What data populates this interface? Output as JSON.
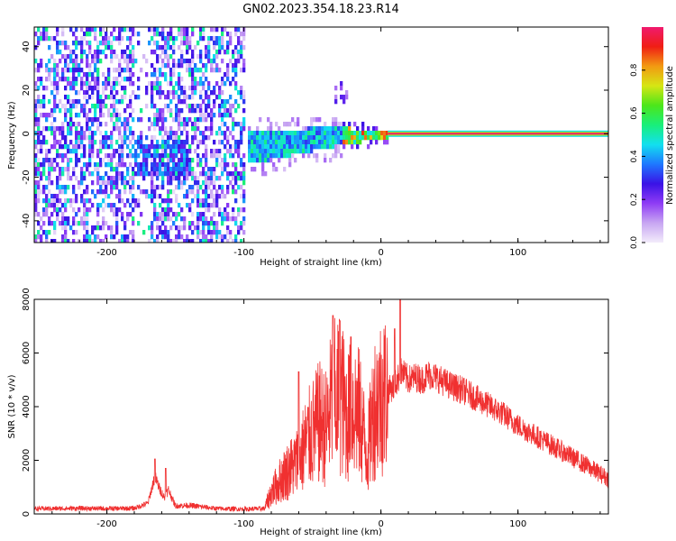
{
  "figure": {
    "title": "GN02.2023.354.18.23.R14"
  },
  "chart_data": [
    {
      "type": "heatmap",
      "name": "spectrogram",
      "xlabel": "Height of straight line (km)",
      "ylabel": "Frequency (Hz)",
      "xlim": [
        -253,
        166
      ],
      "ylim": [
        -50,
        49
      ],
      "xticks": [
        -200,
        -100,
        0,
        100
      ],
      "yticks": [
        -40,
        -20,
        0,
        20,
        40
      ],
      "colorbar": {
        "label": "Normalized spectral amplitude",
        "range": [
          0,
          1
        ],
        "ticks": [
          "0.0",
          "0.2",
          "0.4",
          "0.6",
          "0.8"
        ],
        "colormap": [
          "#f3ecfb",
          "#c8a6f2",
          "#8f3cf5",
          "#3a12e6",
          "#1e78ff",
          "#12e0ef",
          "#19ef7a",
          "#4ce61a",
          "#d6e614",
          "#f29a12",
          "#f01e14",
          "#f01a6e"
        ]
      },
      "regions": [
        {
          "from": -253,
          "to": -100,
          "description": "broadband noise",
          "amplitude": 0.18
        },
        {
          "from": -180,
          "to": -140,
          "center_hz": -10,
          "amplitude": 0.3
        },
        {
          "from": -98,
          "to": -30,
          "center_hz": -5,
          "amplitude": 0.4
        },
        {
          "from": -30,
          "to": 5,
          "center_hz": 0,
          "amplitude": 0.85
        },
        {
          "from": 5,
          "to": 166,
          "center_hz": 0,
          "amplitude": 1.0
        }
      ]
    },
    {
      "type": "line",
      "name": "snr",
      "xlabel": "Height of straight line (km)",
      "ylabel": "SNR (10 * v/v)",
      "xlim": [
        -253,
        166
      ],
      "ylim": [
        0,
        8000
      ],
      "xticks": [
        -200,
        -100,
        0,
        100
      ],
      "yticks": [
        0,
        2000,
        4000,
        6000,
        8000
      ],
      "color": "#f03030",
      "series": [
        {
          "x": [
            -253,
            -240,
            -220,
            -200,
            -180,
            -170,
            -165,
            -162,
            -158,
            -155,
            -150,
            -140,
            -120,
            -100,
            -85,
            -80,
            -70,
            -60,
            -55,
            -50,
            -45,
            -40,
            -35,
            -32,
            -30,
            -25,
            -20,
            -15,
            -10,
            -5,
            0,
            5,
            10,
            15,
            20,
            25,
            30,
            35,
            40,
            50,
            60,
            70,
            80,
            90,
            100,
            110,
            120,
            130,
            140,
            150,
            160,
            166
          ],
          "y": [
            200,
            200,
            210,
            200,
            210,
            400,
            1400,
            1000,
            600,
            900,
            300,
            320,
            200,
            180,
            200,
            800,
            1500,
            2000,
            2600,
            3000,
            3400,
            3200,
            4400,
            4200,
            4600,
            3600,
            4000,
            3600,
            2200,
            4000,
            4400,
            4600,
            4800,
            5300,
            5000,
            5100,
            5000,
            5200,
            5100,
            4800,
            4600,
            4300,
            4000,
            3700,
            3300,
            3000,
            2700,
            2400,
            2100,
            1800,
            1500,
            1300
          ],
          "peaks": [
            {
              "x": -165,
              "y": 2050
            },
            {
              "x": -157,
              "y": 1700
            },
            {
              "x": -60,
              "y": 5300
            },
            {
              "x": -35,
              "y": 7400
            },
            {
              "x": -30,
              "y": 7200
            },
            {
              "x": -22,
              "y": 6600
            },
            {
              "x": 10,
              "y": 6900
            },
            {
              "x": 14,
              "y": 8000
            }
          ]
        }
      ]
    }
  ]
}
